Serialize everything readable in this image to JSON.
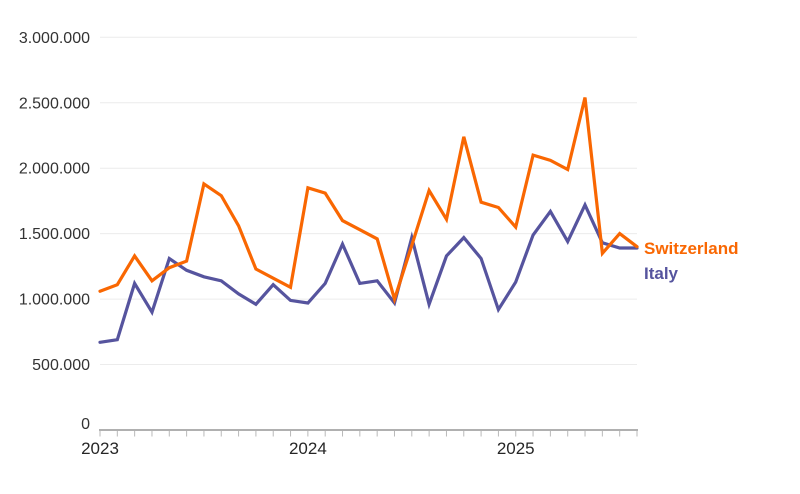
{
  "chart_data": {
    "type": "line",
    "title": "",
    "x_unit": "month",
    "categories": [
      "2023-01",
      "2023-02",
      "2023-03",
      "2023-04",
      "2023-05",
      "2023-06",
      "2023-07",
      "2023-08",
      "2023-09",
      "2023-10",
      "2023-11",
      "2023-12",
      "2024-01",
      "2024-02",
      "2024-03",
      "2024-04",
      "2024-05",
      "2024-06",
      "2024-07",
      "2024-08",
      "2024-09",
      "2024-10",
      "2024-11",
      "2024-12",
      "2025-01",
      "2025-02",
      "2025-03",
      "2025-04",
      "2025-05",
      "2025-06",
      "2025-07",
      "2025-08"
    ],
    "series": [
      {
        "name": "Switzerland",
        "color": "#f96702",
        "values": [
          1060000,
          1110000,
          1330000,
          1140000,
          1240000,
          1290000,
          1880000,
          1790000,
          1560000,
          1230000,
          1160000,
          1090000,
          1850000,
          1810000,
          1600000,
          1530000,
          1460000,
          1000000,
          1410000,
          1830000,
          1610000,
          2240000,
          1740000,
          1700000,
          1550000,
          2100000,
          2060000,
          1990000,
          2540000,
          1350000,
          1500000,
          1400000
        ]
      },
      {
        "name": "Italy",
        "color": "#56549e",
        "values": [
          670000,
          690000,
          1120000,
          900000,
          1310000,
          1220000,
          1170000,
          1140000,
          1040000,
          960000,
          1110000,
          990000,
          970000,
          1120000,
          1420000,
          1120000,
          1140000,
          970000,
          1470000,
          960000,
          1330000,
          1470000,
          1310000,
          920000,
          1130000,
          1490000,
          1670000,
          1440000,
          1720000,
          1430000,
          1390000,
          1390000
        ]
      }
    ],
    "y_axis": {
      "range": [
        0,
        3000000
      ],
      "ticks": [
        {
          "value": 3000000,
          "label": "3.000.000"
        },
        {
          "value": 2500000,
          "label": "2.500.000"
        },
        {
          "value": 2000000,
          "label": "2.000.000"
        },
        {
          "value": 1500000,
          "label": "1.500.000"
        },
        {
          "value": 1000000,
          "label": "1.000.000"
        },
        {
          "value": 500000,
          "label": "500.000"
        },
        {
          "value": 0,
          "label": "0"
        }
      ],
      "grid": true
    },
    "x_axis": {
      "year_labels": [
        {
          "label": "2023",
          "month_index": 0
        },
        {
          "label": "2024",
          "month_index": 12
        },
        {
          "label": "2025",
          "month_index": 24
        }
      ],
      "minor_tick_every_month": true
    },
    "legend": {
      "position": "end-of-line-labels",
      "entries": [
        "Switzerland",
        "Italy"
      ]
    },
    "colors": {
      "grid": "#ececec",
      "axis": "#b0b0b0",
      "tick": "#b9b9b9",
      "axis_text": "#333333"
    }
  }
}
